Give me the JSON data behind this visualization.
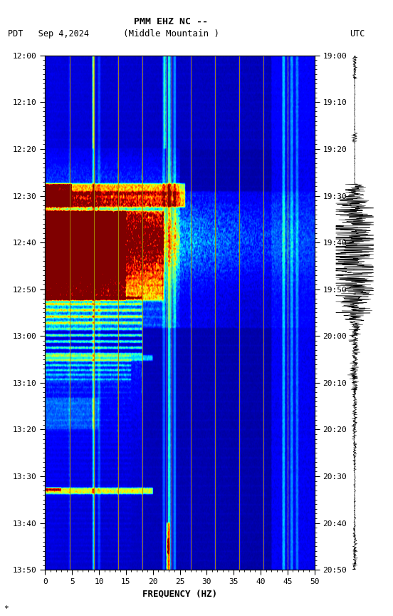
{
  "title_line1": "PMM EHZ NC --",
  "title_line2": "(Middle Mountain )",
  "left_label": "PDT   Sep 4,2024",
  "right_label": "UTC",
  "xlabel": "FREQUENCY (HZ)",
  "freq_min": 0,
  "freq_max": 50,
  "freq_ticks": [
    0,
    5,
    10,
    15,
    20,
    25,
    30,
    35,
    40,
    45,
    50
  ],
  "time_left_labels": [
    "12:00",
    "12:10",
    "12:20",
    "12:30",
    "12:40",
    "12:50",
    "13:00",
    "13:10",
    "13:20",
    "13:30",
    "13:40",
    "13:50"
  ],
  "time_right_labels": [
    "19:00",
    "19:10",
    "19:20",
    "19:30",
    "19:40",
    "19:50",
    "20:00",
    "20:10",
    "20:20",
    "20:30",
    "20:40",
    "20:50"
  ],
  "bg_color": "white",
  "colormap": "jet",
  "vertical_line_freqs": [
    4.5,
    9.0,
    13.5,
    18.0,
    22.5,
    23.5,
    27.0,
    31.5,
    36.0,
    40.5,
    45.0
  ],
  "vertical_line_color": "#b09000",
  "seismogram_bg": "white",
  "total_minutes": 110,
  "n_time": 660,
  "n_freq": 500
}
